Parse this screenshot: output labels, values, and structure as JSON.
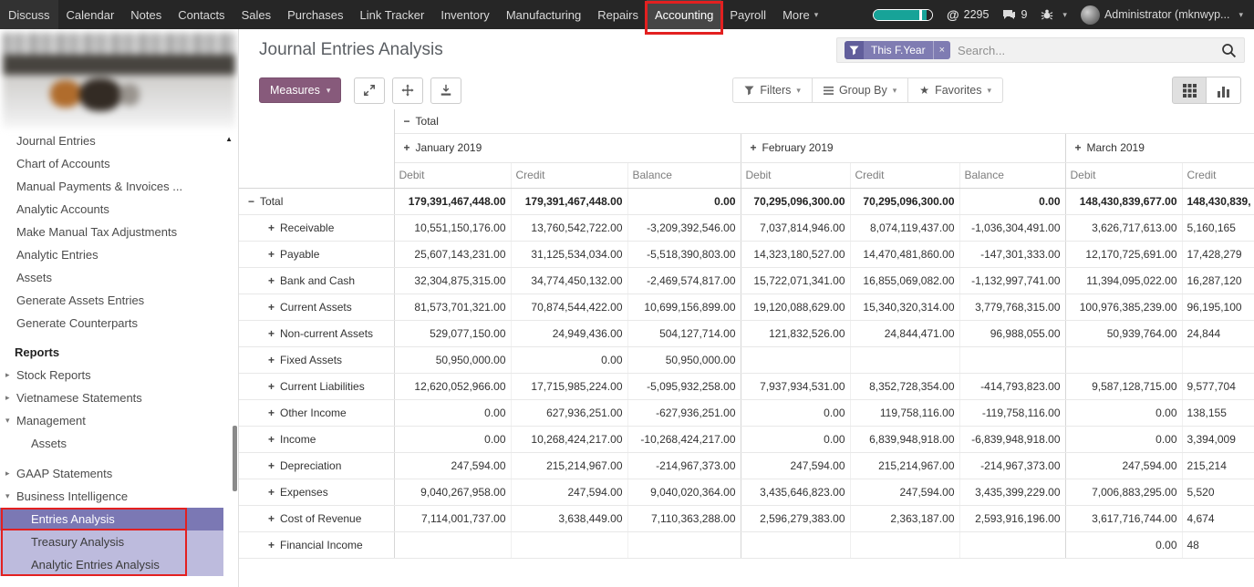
{
  "colors": {
    "primary": "#875A7B",
    "annotation": "#e32020",
    "sidebar_selected": "#7b78b4",
    "sidebar_highlight": "#bdbbdd",
    "facet": "#7f7cb2",
    "progress": "#17a398",
    "topnav_bg": "#262626"
  },
  "topnav": {
    "items": [
      {
        "label": "Discuss"
      },
      {
        "label": "Calendar"
      },
      {
        "label": "Notes"
      },
      {
        "label": "Contacts"
      },
      {
        "label": "Sales"
      },
      {
        "label": "Purchases"
      },
      {
        "label": "Link Tracker"
      },
      {
        "label": "Inventory"
      },
      {
        "label": "Manufacturing"
      },
      {
        "label": "Repairs"
      },
      {
        "label": "Accounting"
      },
      {
        "label": "Payroll"
      },
      {
        "label": "More",
        "caret": true
      }
    ],
    "active_item": "Accounting",
    "activity_count": "2295",
    "message_count": "9",
    "user_label": "Administrator (mknwyp..."
  },
  "sidebar": {
    "items": [
      {
        "label": "Journal Entries"
      },
      {
        "label": "Chart of Accounts"
      },
      {
        "label": "Manual Payments & Invoices ..."
      },
      {
        "label": "Analytic Accounts"
      },
      {
        "label": "Make Manual Tax Adjustments"
      },
      {
        "label": "Analytic Entries"
      },
      {
        "label": "Assets"
      },
      {
        "label": "Generate Assets Entries"
      },
      {
        "label": "Generate Counterparts"
      },
      {
        "label": "Reports",
        "heading": true
      },
      {
        "label": "Stock Reports",
        "arrow": "right"
      },
      {
        "label": "Vietnamese Statements",
        "arrow": "right"
      },
      {
        "label": "Management",
        "arrow": "down"
      },
      {
        "label": "Assets",
        "child": true
      },
      {
        "label": "GAAP Statements",
        "arrow": "right",
        "gap": true
      },
      {
        "label": "Business Intelligence",
        "arrow": "down"
      },
      {
        "label": "Entries Analysis",
        "child": true,
        "state": "selected",
        "annotated": true
      },
      {
        "label": "Treasury Analysis",
        "child": true,
        "state": "highlight",
        "annotated": true
      },
      {
        "label": "Analytic Entries Analysis",
        "child": true,
        "state": "highlight",
        "annotated": true
      }
    ]
  },
  "header": {
    "title": "Journal Entries Analysis"
  },
  "search": {
    "facet": "This F.Year",
    "placeholder": "Search..."
  },
  "toolbar": {
    "measures": "Measures",
    "filters": "Filters",
    "group_by": "Group By",
    "favorites": "Favorites"
  },
  "pivot": {
    "top_header": {
      "label": "Total"
    },
    "groups": [
      {
        "label": "January 2019",
        "measures": [
          "Debit",
          "Credit",
          "Balance"
        ]
      },
      {
        "label": "February 2019",
        "measures": [
          "Debit",
          "Credit",
          "Balance"
        ]
      },
      {
        "label": "March 2019",
        "measures": [
          "Debit",
          "Credit"
        ]
      }
    ],
    "rows": [
      {
        "label": "Total",
        "icon": "minus",
        "bold": true,
        "level": 0,
        "values": [
          "179,391,467,448.00",
          "179,391,467,448.00",
          "0.00",
          "70,295,096,300.00",
          "70,295,096,300.00",
          "0.00",
          "148,430,839,677.00",
          "148,430,839,"
        ]
      },
      {
        "label": "Receivable",
        "icon": "plus",
        "level": 1,
        "values": [
          "10,551,150,176.00",
          "13,760,542,722.00",
          "-3,209,392,546.00",
          "7,037,814,946.00",
          "8,074,119,437.00",
          "-1,036,304,491.00",
          "3,626,717,613.00",
          "5,160,165"
        ]
      },
      {
        "label": "Payable",
        "icon": "plus",
        "level": 1,
        "values": [
          "25,607,143,231.00",
          "31,125,534,034.00",
          "-5,518,390,803.00",
          "14,323,180,527.00",
          "14,470,481,860.00",
          "-147,301,333.00",
          "12,170,725,691.00",
          "17,428,279"
        ]
      },
      {
        "label": "Bank and Cash",
        "icon": "plus",
        "level": 1,
        "values": [
          "32,304,875,315.00",
          "34,774,450,132.00",
          "-2,469,574,817.00",
          "15,722,071,341.00",
          "16,855,069,082.00",
          "-1,132,997,741.00",
          "11,394,095,022.00",
          "16,287,120"
        ]
      },
      {
        "label": "Current Assets",
        "icon": "plus",
        "level": 1,
        "values": [
          "81,573,701,321.00",
          "70,874,544,422.00",
          "10,699,156,899.00",
          "19,120,088,629.00",
          "15,340,320,314.00",
          "3,779,768,315.00",
          "100,976,385,239.00",
          "96,195,100"
        ]
      },
      {
        "label": "Non-current Assets",
        "icon": "plus",
        "level": 1,
        "values": [
          "529,077,150.00",
          "24,949,436.00",
          "504,127,714.00",
          "121,832,526.00",
          "24,844,471.00",
          "96,988,055.00",
          "50,939,764.00",
          "24,844"
        ]
      },
      {
        "label": "Fixed Assets",
        "icon": "plus",
        "level": 1,
        "values": [
          "50,950,000.00",
          "0.00",
          "50,950,000.00",
          "",
          "",
          "",
          "",
          ""
        ]
      },
      {
        "label": "Current Liabilities",
        "icon": "plus",
        "level": 1,
        "values": [
          "12,620,052,966.00",
          "17,715,985,224.00",
          "-5,095,932,258.00",
          "7,937,934,531.00",
          "8,352,728,354.00",
          "-414,793,823.00",
          "9,587,128,715.00",
          "9,577,704"
        ]
      },
      {
        "label": "Other Income",
        "icon": "plus",
        "level": 1,
        "values": [
          "0.00",
          "627,936,251.00",
          "-627,936,251.00",
          "0.00",
          "119,758,116.00",
          "-119,758,116.00",
          "0.00",
          "138,155"
        ]
      },
      {
        "label": "Income",
        "icon": "plus",
        "level": 1,
        "values": [
          "0.00",
          "10,268,424,217.00",
          "-10,268,424,217.00",
          "0.00",
          "6,839,948,918.00",
          "-6,839,948,918.00",
          "0.00",
          "3,394,009"
        ]
      },
      {
        "label": "Depreciation",
        "icon": "plus",
        "level": 1,
        "values": [
          "247,594.00",
          "215,214,967.00",
          "-214,967,373.00",
          "247,594.00",
          "215,214,967.00",
          "-214,967,373.00",
          "247,594.00",
          "215,214"
        ]
      },
      {
        "label": "Expenses",
        "icon": "plus",
        "level": 1,
        "values": [
          "9,040,267,958.00",
          "247,594.00",
          "9,040,020,364.00",
          "3,435,646,823.00",
          "247,594.00",
          "3,435,399,229.00",
          "7,006,883,295.00",
          "5,520"
        ]
      },
      {
        "label": "Cost of Revenue",
        "icon": "plus",
        "level": 1,
        "values": [
          "7,114,001,737.00",
          "3,638,449.00",
          "7,110,363,288.00",
          "2,596,279,383.00",
          "2,363,187.00",
          "2,593,916,196.00",
          "3,617,716,744.00",
          "4,674"
        ]
      },
      {
        "label": "Financial Income",
        "icon": "plus",
        "level": 1,
        "values": [
          "",
          "",
          "",
          "",
          "",
          "",
          "0.00",
          "48"
        ]
      }
    ]
  }
}
